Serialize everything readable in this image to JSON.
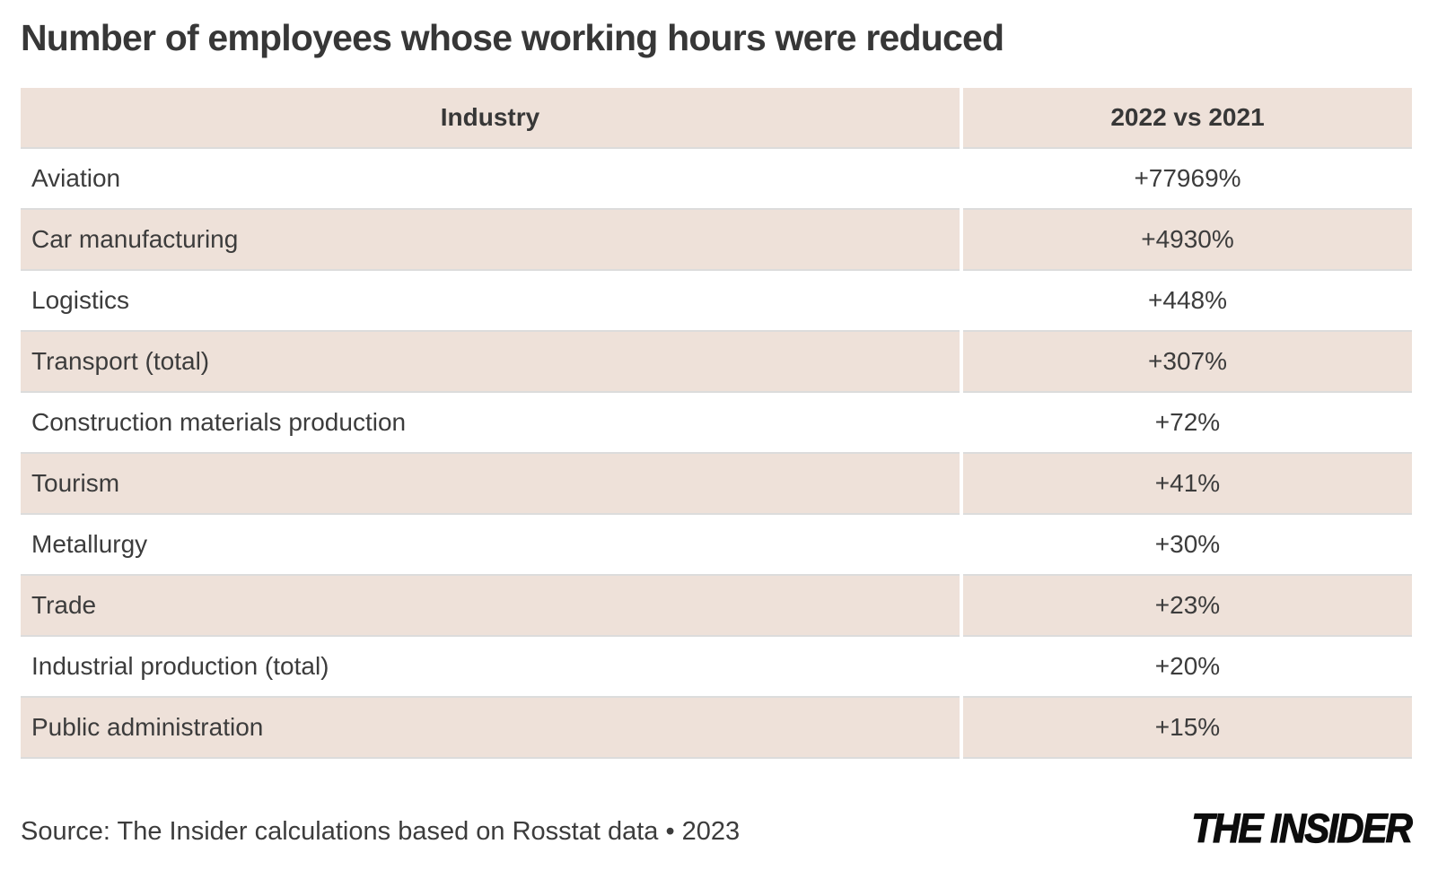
{
  "title": "Number of employees whose working hours were reduced",
  "table": {
    "columns": [
      {
        "label": "Industry"
      },
      {
        "label": "2022 vs 2021"
      }
    ],
    "rows": [
      {
        "industry": "Aviation",
        "value": "+77969%"
      },
      {
        "industry": "Car manufacturing",
        "value": "+4930%"
      },
      {
        "industry": "Logistics",
        "value": "+448%"
      },
      {
        "industry": "Transport (total)",
        "value": "+307%"
      },
      {
        "industry": "Construction materials production",
        "value": "+72%"
      },
      {
        "industry": "Tourism",
        "value": "+41%"
      },
      {
        "industry": "Metallurgy",
        "value": "+30%"
      },
      {
        "industry": "Trade",
        "value": "+23%"
      },
      {
        "industry": "Industrial production (total)",
        "value": "+20%"
      },
      {
        "industry": "Public administration",
        "value": "+15%"
      }
    ]
  },
  "footer": {
    "source": "Source: The Insider calculations based on Rosstat data • 2023",
    "logo": "THE INSIDER"
  },
  "colors": {
    "row_shade": "#eee1d9",
    "separator": "#dcdcdc",
    "text": "#3c3c3c",
    "title_text": "#373737",
    "logo_black": "#0d0d0d",
    "background": "#ffffff"
  },
  "chart_data": {
    "type": "table",
    "title": "Number of employees whose working hours were reduced",
    "columns": [
      "Industry",
      "2022 vs 2021"
    ],
    "rows": [
      [
        "Aviation",
        "+77969%"
      ],
      [
        "Car manufacturing",
        "+4930%"
      ],
      [
        "Logistics",
        "+448%"
      ],
      [
        "Transport (total)",
        "+307%"
      ],
      [
        "Construction materials production",
        "+72%"
      ],
      [
        "Tourism",
        "+41%"
      ],
      [
        "Metallurgy",
        "+30%"
      ],
      [
        "Trade",
        "+23%"
      ],
      [
        "Industrial production (total)",
        "+20%"
      ],
      [
        "Public administration",
        "+15%"
      ]
    ],
    "values_percent": [
      77969,
      4930,
      448,
      307,
      72,
      41,
      30,
      23,
      20,
      15
    ],
    "source": "Source: The Insider calculations based on Rosstat data • 2023"
  }
}
